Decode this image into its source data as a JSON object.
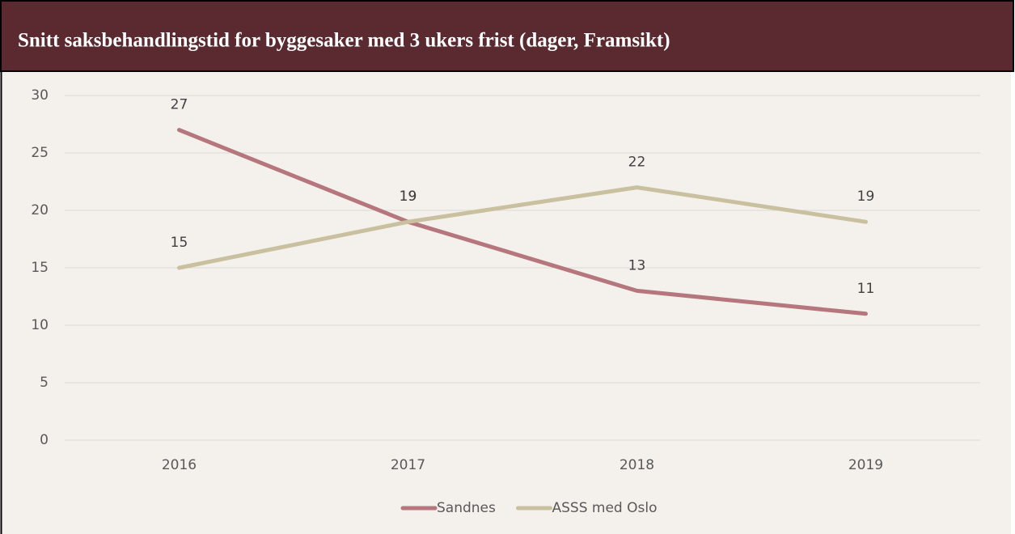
{
  "chart_data": {
    "type": "line",
    "title": "Snitt saksbehandlingstid for byggesaker med 3 ukers frist (dager, Framsikt)",
    "categories": [
      "2016",
      "2017",
      "2018",
      "2019"
    ],
    "series": [
      {
        "name": "Sandnes",
        "color": "#b5777d",
        "values": [
          27,
          19,
          13,
          11
        ]
      },
      {
        "name": "ASSS med Oslo",
        "color": "#c9c09f",
        "values": [
          15,
          19,
          22,
          19
        ]
      }
    ],
    "ylim": [
      0,
      30
    ],
    "yticks": [
      0,
      5,
      10,
      15,
      20,
      25,
      30
    ],
    "grid": true,
    "legend": "bottom"
  }
}
